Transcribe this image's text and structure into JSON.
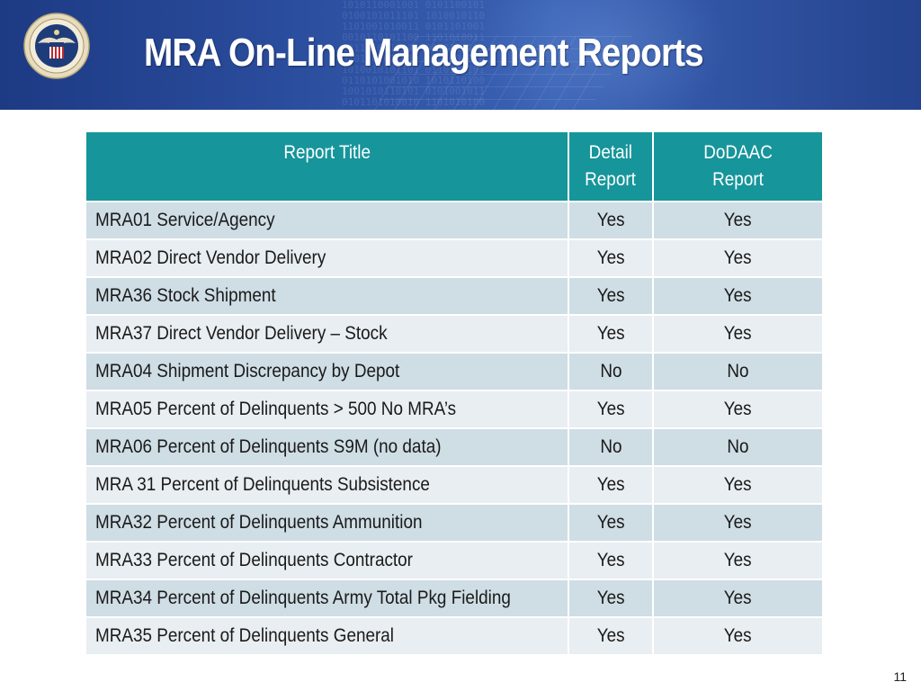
{
  "header": {
    "title": "MRA On-Line Management Reports",
    "seal_icon": "dod-seal-icon"
  },
  "table": {
    "columns": {
      "report_title": "Report Title",
      "detail_report_line1": "Detail",
      "detail_report_line2": "Report",
      "dodaac_report_line1": "DoDAAC",
      "dodaac_report_line2": "Report"
    },
    "rows": [
      {
        "title": "MRA01 Service/Agency",
        "detail": "Yes",
        "dodaac": "Yes"
      },
      {
        "title": "MRA02 Direct Vendor Delivery",
        "detail": "Yes",
        "dodaac": "Yes"
      },
      {
        "title": "MRA36 Stock Shipment",
        "detail": "Yes",
        "dodaac": "Yes"
      },
      {
        "title": "MRA37 Direct Vendor Delivery – Stock",
        "detail": "Yes",
        "dodaac": "Yes"
      },
      {
        "title": "MRA04 Shipment Discrepancy by Depot",
        "detail": "No",
        "dodaac": "No"
      },
      {
        "title": "MRA05 Percent of Delinquents > 500 No MRA’s",
        "detail": "Yes",
        "dodaac": "Yes"
      },
      {
        "title": "MRA06 Percent of Delinquents S9M  (no data)",
        "detail": "No",
        "dodaac": "No"
      },
      {
        "title": "MRA 31 Percent of Delinquents Subsistence",
        "detail": "Yes",
        "dodaac": "Yes"
      },
      {
        "title": "MRA32 Percent of Delinquents Ammunition",
        "detail": "Yes",
        "dodaac": "Yes"
      },
      {
        "title": "MRA33 Percent of Delinquents Contractor",
        "detail": "Yes",
        "dodaac": "Yes"
      },
      {
        "title": "MRA34 Percent of Delinquents Army Total Pkg Fielding",
        "detail": "Yes",
        "dodaac": "Yes"
      },
      {
        "title": "MRA35 Percent of Delinquents General",
        "detail": "Yes",
        "dodaac": "Yes"
      }
    ]
  },
  "footer": {
    "page_number": "11"
  },
  "colors": {
    "header_bg": "#2a4c9c",
    "table_header_bg": "#16959b",
    "row_odd_bg": "#cfdde5",
    "row_even_bg": "#e8eef2"
  }
}
